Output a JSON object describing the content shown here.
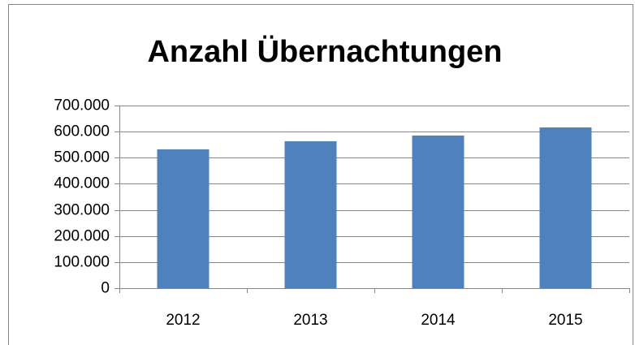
{
  "chart_data": {
    "type": "bar",
    "title": "Anzahl Übernachtungen",
    "categories": [
      "2012",
      "2013",
      "2014",
      "2015"
    ],
    "values": [
      532000,
      563000,
      585000,
      616000
    ],
    "color": "#4f81bd",
    "ylim": [
      0,
      700000
    ],
    "yticks": [
      0,
      {
        "value": 100000,
        "label": "100.000"
      },
      {
        "value": 200000,
        "label": "200.000"
      },
      {
        "value": 300000,
        "label": "300.000"
      },
      {
        "value": 400000,
        "label": "400.000"
      },
      {
        "value": 500000,
        "label": "500.000"
      },
      {
        "value": 600000,
        "label": "600.000"
      },
      {
        "value": 700000,
        "label": "700.000"
      }
    ],
    "grid": true
  }
}
